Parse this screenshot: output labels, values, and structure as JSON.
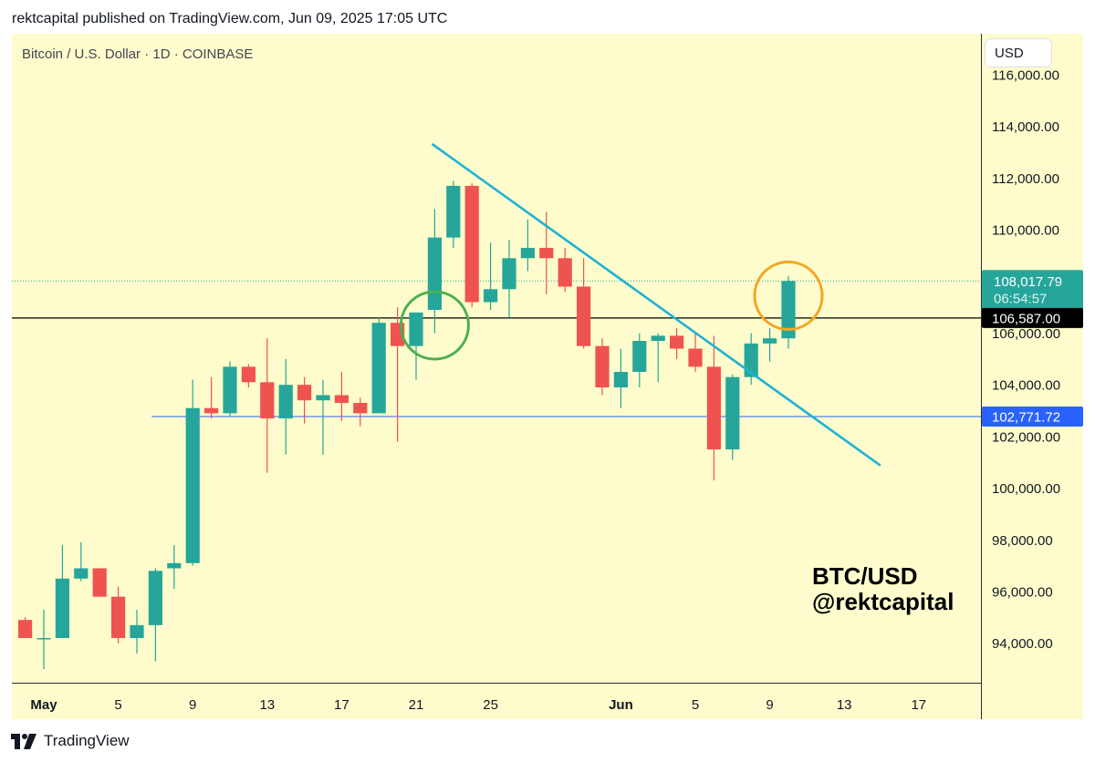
{
  "header": {
    "published_line": "rektcapital published on TradingView.com, Jun 09, 2025 17:05 UTC"
  },
  "chart_info": {
    "symbol_line": "Bitcoin / U.S. Dollar · 1D · COINBASE"
  },
  "toolbar": {
    "currency_label": "USD"
  },
  "watermark": {
    "line1": "BTC/USD",
    "line2": "@rektcapital"
  },
  "footer": {
    "brand": "TradingView"
  },
  "colors": {
    "background": "#ffffff",
    "plot_background": "#fefccc",
    "up": "#26a69a",
    "down": "#ef5350",
    "trendline": "#1fb1d6",
    "support": "#2962ff",
    "resistance": "#000000",
    "circle_green": "#4caf50",
    "circle_orange": "#f5a623"
  },
  "chart_data": {
    "type": "candlestick",
    "title": "Bitcoin / U.S. Dollar · 1D · COINBASE",
    "ylim": [
      92400,
      116900
    ],
    "y_ticks": [
      {
        "value": 94000,
        "label": "94,000.00"
      },
      {
        "value": 96000,
        "label": "96,000.00"
      },
      {
        "value": 98000,
        "label": "98,000.00"
      },
      {
        "value": 100000,
        "label": "100,000.00"
      },
      {
        "value": 102000,
        "label": "102,000.00"
      },
      {
        "value": 104000,
        "label": "104,000.00"
      },
      {
        "value": 106000,
        "label": "106,000.00"
      },
      {
        "value": 110000,
        "label": "110,000.00"
      },
      {
        "value": 112000,
        "label": "112,000.00"
      },
      {
        "value": 114000,
        "label": "114,000.00"
      },
      {
        "value": 116000,
        "label": "116,000.00"
      }
    ],
    "x_ticks": [
      {
        "day": 0,
        "label": "May",
        "bold": true
      },
      {
        "day": 4,
        "label": "5",
        "bold": false
      },
      {
        "day": 8,
        "label": "9",
        "bold": false
      },
      {
        "day": 12,
        "label": "13",
        "bold": false
      },
      {
        "day": 16,
        "label": "17",
        "bold": false
      },
      {
        "day": 20,
        "label": "21",
        "bold": false
      },
      {
        "day": 24,
        "label": "25",
        "bold": false
      },
      {
        "day": 31,
        "label": "Jun",
        "bold": true
      },
      {
        "day": 35,
        "label": "5",
        "bold": false
      },
      {
        "day": 39,
        "label": "9",
        "bold": false
      },
      {
        "day": 43,
        "label": "13",
        "bold": false
      },
      {
        "day": 47,
        "label": "17",
        "bold": false
      }
    ],
    "day_range": [
      -0.3,
      52.5
    ],
    "candles": [
      {
        "day": -1,
        "o": 94900,
        "h": 95000,
        "l": 94200,
        "c": 94200
      },
      {
        "day": 0,
        "o": 94200,
        "h": 95300,
        "l": 93000,
        "c": 94200
      },
      {
        "day": 1,
        "o": 94200,
        "h": 97800,
        "l": 94200,
        "c": 96500
      },
      {
        "day": 2,
        "o": 96500,
        "h": 97900,
        "l": 96400,
        "c": 96900
      },
      {
        "day": 3,
        "o": 96900,
        "h": 96900,
        "l": 95800,
        "c": 95800
      },
      {
        "day": 4,
        "o": 95800,
        "h": 96200,
        "l": 94000,
        "c": 94200
      },
      {
        "day": 5,
        "o": 94200,
        "h": 95300,
        "l": 93600,
        "c": 94700
      },
      {
        "day": 6,
        "o": 94700,
        "h": 96900,
        "l": 93300,
        "c": 96800
      },
      {
        "day": 7,
        "o": 96900,
        "h": 97800,
        "l": 96100,
        "c": 97100
      },
      {
        "day": 8,
        "o": 97100,
        "h": 104200,
        "l": 97000,
        "c": 103100
      },
      {
        "day": 9,
        "o": 103100,
        "h": 104300,
        "l": 102700,
        "c": 102900
      },
      {
        "day": 10,
        "o": 102900,
        "h": 104900,
        "l": 102800,
        "c": 104700
      },
      {
        "day": 11,
        "o": 104700,
        "h": 104800,
        "l": 103900,
        "c": 104100
      },
      {
        "day": 12,
        "o": 104100,
        "h": 105800,
        "l": 100600,
        "c": 102700
      },
      {
        "day": 13,
        "o": 102700,
        "h": 105000,
        "l": 101300,
        "c": 104000
      },
      {
        "day": 14,
        "o": 104000,
        "h": 104300,
        "l": 102500,
        "c": 103400
      },
      {
        "day": 15,
        "o": 103400,
        "h": 104200,
        "l": 101300,
        "c": 103600
      },
      {
        "day": 16,
        "o": 103600,
        "h": 104500,
        "l": 102600,
        "c": 103300
      },
      {
        "day": 17,
        "o": 103300,
        "h": 103500,
        "l": 102400,
        "c": 102900
      },
      {
        "day": 18,
        "o": 102900,
        "h": 106600,
        "l": 102900,
        "c": 106400
      },
      {
        "day": 19,
        "o": 106400,
        "h": 107000,
        "l": 101800,
        "c": 105500
      },
      {
        "day": 20,
        "o": 105500,
        "h": 106800,
        "l": 104200,
        "c": 106800
      },
      {
        "day": 21,
        "o": 106900,
        "h": 110800,
        "l": 106000,
        "c": 109700
      },
      {
        "day": 22,
        "o": 109700,
        "h": 111900,
        "l": 109300,
        "c": 111700
      },
      {
        "day": 23,
        "o": 111700,
        "h": 111800,
        "l": 107000,
        "c": 107200
      },
      {
        "day": 24,
        "o": 107200,
        "h": 109500,
        "l": 106900,
        "c": 107700
      },
      {
        "day": 25,
        "o": 107700,
        "h": 109600,
        "l": 106600,
        "c": 108900
      },
      {
        "day": 26,
        "o": 108900,
        "h": 110400,
        "l": 108400,
        "c": 109300
      },
      {
        "day": 27,
        "o": 109300,
        "h": 110700,
        "l": 107500,
        "c": 108900
      },
      {
        "day": 28,
        "o": 108900,
        "h": 109300,
        "l": 107600,
        "c": 107800
      },
      {
        "day": 29,
        "o": 107800,
        "h": 108900,
        "l": 105400,
        "c": 105500
      },
      {
        "day": 30,
        "o": 105500,
        "h": 105800,
        "l": 103600,
        "c": 103900
      },
      {
        "day": 31,
        "o": 103900,
        "h": 105400,
        "l": 103100,
        "c": 104500
      },
      {
        "day": 32,
        "o": 104500,
        "h": 106000,
        "l": 103900,
        "c": 105700
      },
      {
        "day": 33,
        "o": 105700,
        "h": 106000,
        "l": 104100,
        "c": 105900
      },
      {
        "day": 34,
        "o": 105900,
        "h": 106200,
        "l": 105000,
        "c": 105400
      },
      {
        "day": 35,
        "o": 105400,
        "h": 106000,
        "l": 104500,
        "c": 104700
      },
      {
        "day": 36,
        "o": 104700,
        "h": 105900,
        "l": 100300,
        "c": 101500
      },
      {
        "day": 37,
        "o": 101500,
        "h": 104400,
        "l": 101100,
        "c": 104300
      },
      {
        "day": 38,
        "o": 104300,
        "h": 106000,
        "l": 104000,
        "c": 105600
      },
      {
        "day": 39,
        "o": 105600,
        "h": 106200,
        "l": 104900,
        "c": 105800
      },
      {
        "day": 40,
        "o": 105800,
        "h": 108200,
        "l": 105400,
        "c": 108018
      }
    ],
    "horizontal_levels": [
      {
        "value": 106587,
        "label": "106,587.00",
        "style": "resistance"
      },
      {
        "value": 102771.72,
        "label": "102,771.72",
        "style": "support"
      }
    ],
    "current_price": {
      "value": 108017.79,
      "label": "108,017.79",
      "countdown": "06:54:57"
    },
    "trendline": {
      "start": {
        "day": 20.9,
        "price": 113300
      },
      "end": {
        "day": 44.9,
        "price": 100900
      }
    },
    "annotations": [
      {
        "type": "circle",
        "day": 21.0,
        "price": 106300,
        "color": "green"
      },
      {
        "type": "circle",
        "day": 40.0,
        "price": 107450,
        "color": "orange"
      }
    ]
  }
}
